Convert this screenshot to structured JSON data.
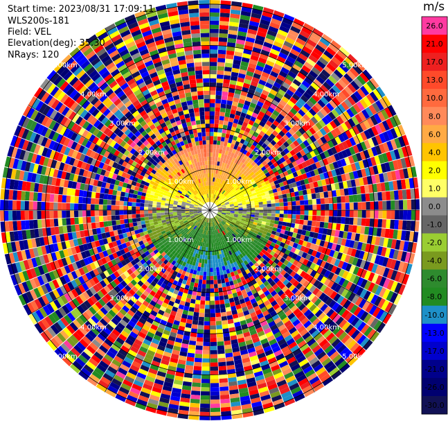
{
  "header": {
    "start_time": "Start time: 2023/08/31 17:09:11",
    "instrument": "WLS200s-181",
    "field": "Field: VEL",
    "elevation": "Elevation(deg): 35.30",
    "nrays": "NRays: 120"
  },
  "colorbar": {
    "unit": "m/s",
    "bins": [
      {
        "label": "26.0",
        "color": "#ff3aa0"
      },
      {
        "label": "21.0",
        "color": "#ff0000"
      },
      {
        "label": "17.0",
        "color": "#ee2020"
      },
      {
        "label": "13.0",
        "color": "#ff4a2a"
      },
      {
        "label": "10.0",
        "color": "#ff6a3e"
      },
      {
        "label": "8.0",
        "color": "#ff8a5a"
      },
      {
        "label": "6.0",
        "color": "#ffaa44"
      },
      {
        "label": "4.0",
        "color": "#ffc400"
      },
      {
        "label": "2.0",
        "color": "#ffff00"
      },
      {
        "label": "1.0",
        "color": "#ffff66"
      },
      {
        "label": "0.0",
        "color": "#8c8c8c"
      },
      {
        "label": "-1.0",
        "color": "#666666"
      },
      {
        "label": "-2.0",
        "color": "#9acd32"
      },
      {
        "label": "-4.0",
        "color": "#7a9a1e"
      },
      {
        "label": "-6.0",
        "color": "#2e8b2e"
      },
      {
        "label": "-8.0",
        "color": "#228b22"
      },
      {
        "label": "-10.0",
        "color": "#1e90c8"
      },
      {
        "label": "-13.0",
        "color": "#0000ff"
      },
      {
        "label": "-17.0",
        "color": "#0000cd"
      },
      {
        "label": "-21.0",
        "color": "#00008b"
      },
      {
        "label": "-26.0",
        "color": "#000070"
      },
      {
        "label": "-30.0",
        "color": "#111155"
      }
    ]
  },
  "chart_data": {
    "type": "heatmap",
    "projection": "polar",
    "field": "VEL",
    "elevation_deg": 35.3,
    "nrays": 120,
    "range_rings": [
      {
        "range_km": 1.0,
        "label": "1.00km"
      },
      {
        "range_km": 2.0,
        "label": "2.00km"
      },
      {
        "range_km": 3.0,
        "label": "3.00km"
      },
      {
        "range_km": 4.0,
        "label": "4.00km"
      },
      {
        "range_km": 5.0,
        "label": "5.00km"
      }
    ],
    "max_range_km": 5.1,
    "spokes_deg": [
      0,
      30,
      60,
      90,
      120,
      150,
      180,
      210,
      240,
      270,
      300,
      330
    ],
    "colorbar_unit": "m/s",
    "colorbar_min": -30.0,
    "colorbar_max": 26.0,
    "valid_data_range_km": 1.6,
    "pattern": "Near-range coherent velocities: northern half positive (0 to +10 m/s, yellow/orange), southern half negative (0 to -13 m/s, green/blue); beyond ~1.6 km noisy random values across the full scale."
  }
}
